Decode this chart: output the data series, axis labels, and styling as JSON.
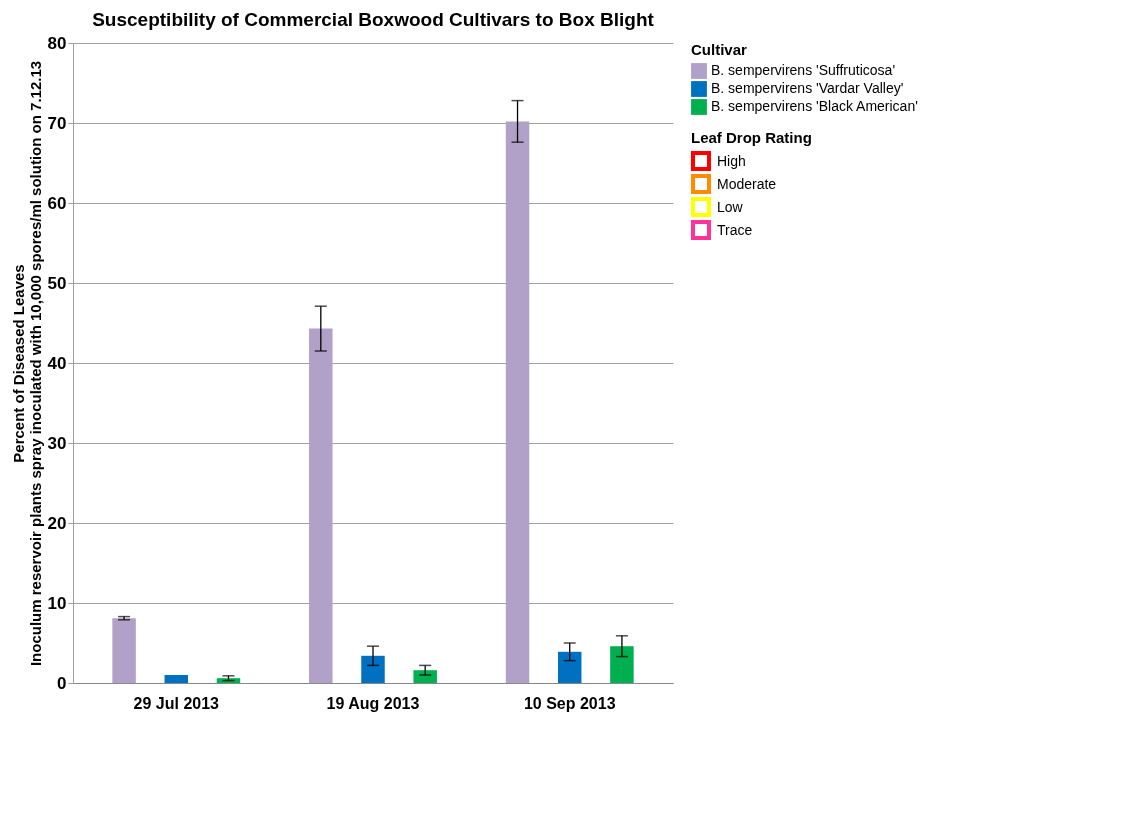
{
  "chart_data": {
    "type": "bar",
    "title": "Susceptibility of Commercial Boxwood Cultivars to Box Blight",
    "ylabel": "Percent of Diseased Leaves",
    "legend_title": "Cultivar",
    "categories": [
      "29 Jul 2013",
      "19 Aug 2013",
      "10 Sep 2013"
    ],
    "series": [
      {
        "name": "B. sempervirens 'Suffruticosa'",
        "color": "#b1a0c7",
        "values": [
          8.1,
          44.3,
          70.2
        ],
        "errors": [
          0.2,
          2.8,
          2.6
        ]
      },
      {
        "name": "B. sempervirens 'Vardar Valley'",
        "color": "#0070c0",
        "values": [
          1.0,
          3.4,
          3.9
        ],
        "errors": [
          null,
          1.2,
          1.1
        ]
      },
      {
        "name": "B. sempervirens 'Black American'",
        "color": "#00b050",
        "values": [
          0.6,
          1.6,
          4.6
        ],
        "errors": [
          0.3,
          0.6,
          1.3
        ]
      }
    ],
    "annotations": [
      "Inoculum reservoir plants spray inoculated with 10,000 spores/ml solution on 7.12.13",
      "Leaf Drop Rating",
      "High",
      "Moderate",
      "Low",
      "Trace"
    ],
    "ylim": [
      0,
      80
    ],
    "yticks": [
      0,
      10,
      20,
      30,
      40,
      50,
      60,
      70,
      80
    ],
    "grid": "y",
    "legend": "right"
  }
}
